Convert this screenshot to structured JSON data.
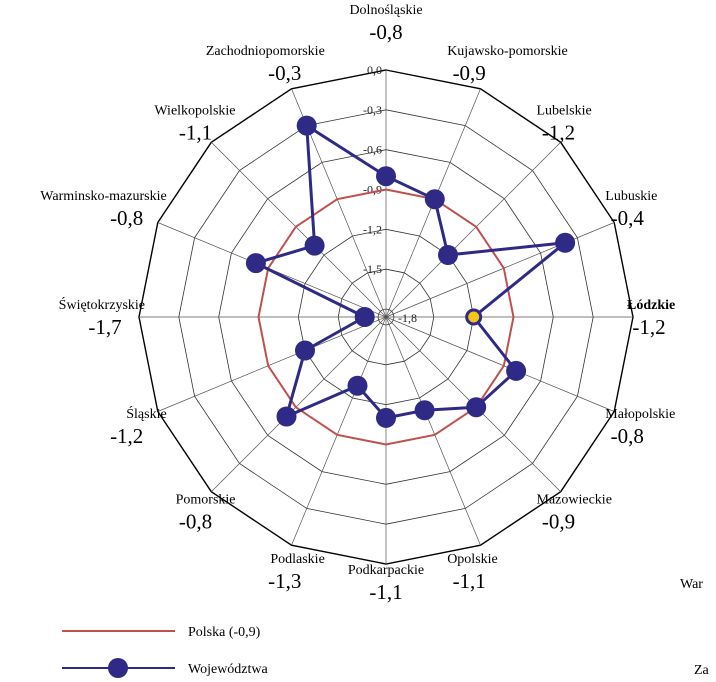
{
  "chart_data": {
    "type": "radar",
    "axes": [
      {
        "name": "Dolnośląskie",
        "value_label": "-0,8",
        "value": -0.8
      },
      {
        "name": "Kujawsko-pomorskie",
        "value_label": "-0,9",
        "value": -0.9
      },
      {
        "name": "Lubelskie",
        "value_label": "-1,2",
        "value": -1.2
      },
      {
        "name": "Lubuskie",
        "value_label": "-0,4",
        "value": -0.4
      },
      {
        "name": "Łódzkie",
        "value_label": "-1,2",
        "value": -1.2,
        "bold": true,
        "highlight": true
      },
      {
        "name": "Małopolskie",
        "value_label": "-0,8",
        "value": -0.8
      },
      {
        "name": "Mazowieckie",
        "value_label": "-0,9",
        "value": -0.9
      },
      {
        "name": "Opolskie",
        "value_label": "-1,1",
        "value": -1.1
      },
      {
        "name": "Podkarpackie",
        "value_label": "-1,1",
        "value": -1.1
      },
      {
        "name": "Podlaskie",
        "value_label": "-1,3",
        "value": -1.3
      },
      {
        "name": "Pomorskie",
        "value_label": "-0,8",
        "value": -0.8
      },
      {
        "name": "Śląskie",
        "value_label": "-1,2",
        "value": -1.2
      },
      {
        "name": "Świętokrzyskie",
        "value_label": "-1,7",
        "value": -1.7
      },
      {
        "name": "Warminsko-mazurskie",
        "value_label": "-0,8",
        "value": -0.8
      },
      {
        "name": "Wielkopolskie",
        "value_label": "-1,1",
        "value": -1.1
      },
      {
        "name": "Zachodniopomorskie",
        "value_label": "-0,3",
        "value": -0.3
      }
    ],
    "scale": {
      "min": -1.8,
      "max": 0.0,
      "ticks": [
        "0,0",
        "-0,3",
        "-0,6",
        "-0,9",
        "-1,2",
        "-1,5",
        "-1,8"
      ]
    },
    "series": [
      {
        "name": "Polska (-0,9)",
        "value": -0.9,
        "color": "#c0504d"
      },
      {
        "name": "Województwa",
        "color": "#2e2a85",
        "marker_color": "#2e2a85",
        "highlight_marker_color": "#f5c518"
      }
    ],
    "grid": true,
    "legend_position": "bottom-left"
  },
  "clipped_text": [
    "War",
    "Za"
  ]
}
